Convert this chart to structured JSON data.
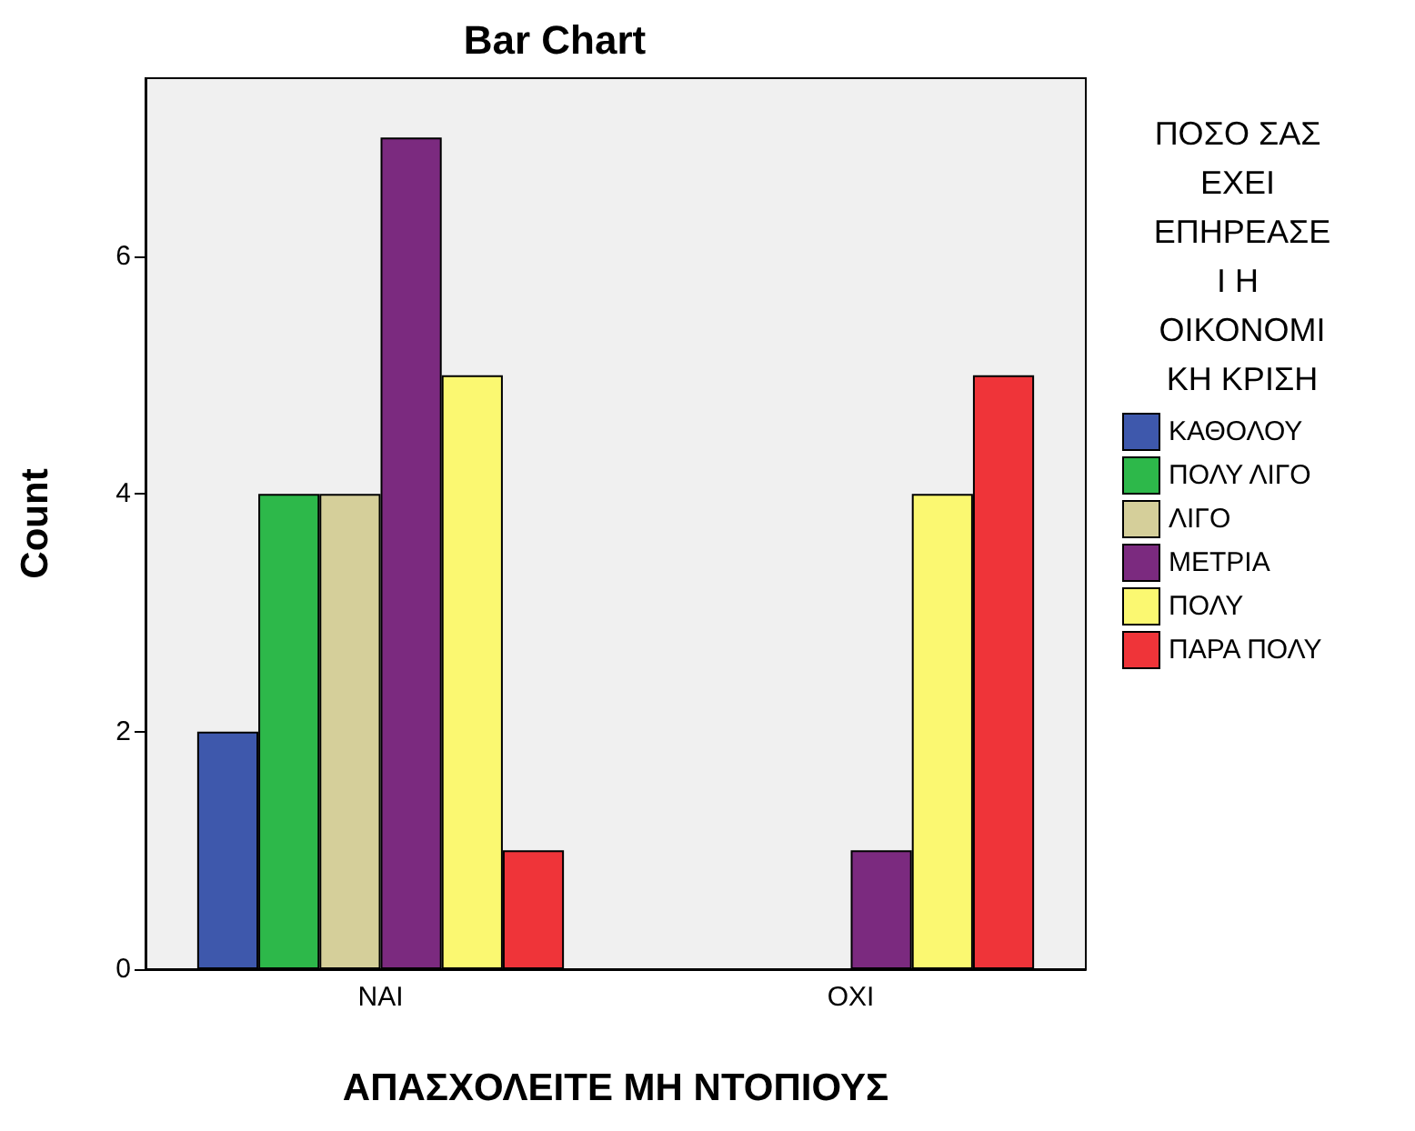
{
  "chart_data": {
    "type": "bar",
    "title": "Bar Chart",
    "xlabel": "ΑΠΑΣΧΟΛΕΙΤΕ ΜΗ ΝΤΟΠΙΟΥΣ",
    "ylabel": "Count",
    "legend_title": "ΠΟΣΟ ΣΑΣ ΕΧΕΙ ΕΠΗΡΕΑΣΕΙ Η ΟΙΚΟΝΟΜΙΚΗ ΚΡΙΣΗ",
    "categories": [
      "ΝΑΙ",
      "ΟΧΙ"
    ],
    "series": [
      {
        "name": "ΚΑΘΟΛΟΥ",
        "color": "#3e58ac",
        "values": [
          2,
          null
        ]
      },
      {
        "name": "ΠΟΛΥ ΛΙΓΟ",
        "color": "#2db84a",
        "values": [
          4,
          null
        ]
      },
      {
        "name": "ΛΙΓΟ",
        "color": "#d5cf9a",
        "values": [
          4,
          null
        ]
      },
      {
        "name": "ΜΕΤΡΙΑ",
        "color": "#7b2a7f",
        "values": [
          7,
          1
        ]
      },
      {
        "name": "ΠΟΛΥ",
        "color": "#fbf871",
        "values": [
          5,
          4
        ]
      },
      {
        "name": "ΠΑΡΑ ΠΟΛΥ",
        "color": "#ef3439",
        "values": [
          1,
          5
        ]
      }
    ],
    "ylim": [
      0,
      7.5
    ],
    "yticks": [
      0,
      2,
      4,
      6
    ],
    "grid": false,
    "legend": "right"
  }
}
